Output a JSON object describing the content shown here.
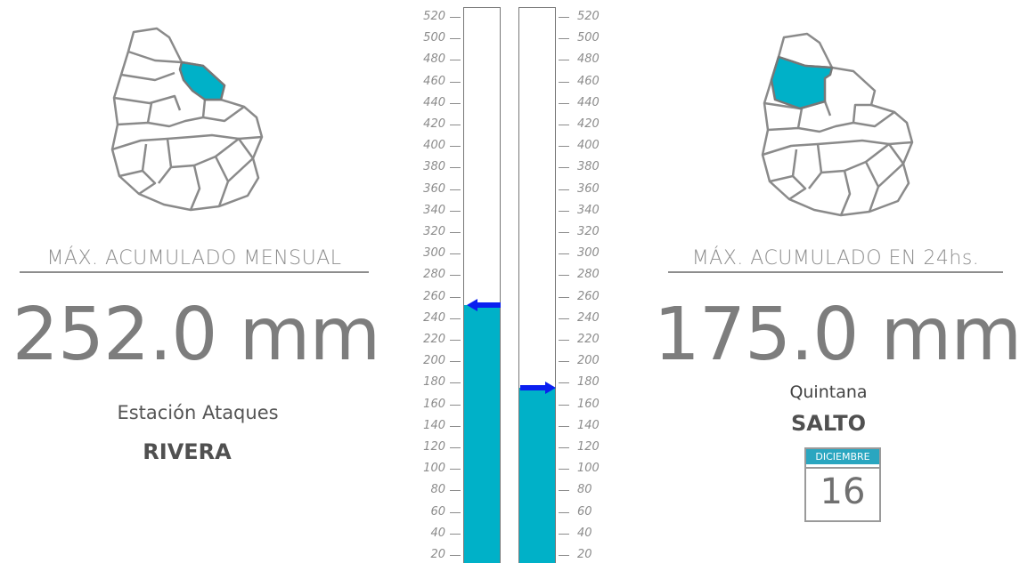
{
  "left_panel": {
    "heading": "MÁX. ACUMULADO MENSUAL",
    "value": "252.0 mm",
    "station": "Estación Ataques",
    "department": "RIVERA"
  },
  "right_panel": {
    "heading": "MÁX. ACUMULADO EN 24hs.",
    "value": "175.0 mm",
    "station": "Quintana",
    "department": "SALTO",
    "calendar": {
      "month": "DICIEMBRE",
      "day": "16"
    }
  },
  "gauge": {
    "left_ticks": [
      "520",
      "500",
      "480",
      "460",
      "440",
      "420",
      "400",
      "380",
      "360",
      "340",
      "320",
      "300",
      "280",
      "260",
      "240",
      "220",
      "200",
      "180",
      "160",
      "140",
      "120",
      "100",
      "80",
      "60",
      "40",
      "20"
    ],
    "right_ticks": [
      "520",
      "500",
      "480",
      "460",
      "440",
      "420",
      "400",
      "380",
      "360",
      "340",
      "320",
      "300",
      "280",
      "260",
      "240",
      "220",
      "200",
      "180",
      "160",
      "140",
      "120",
      "100",
      "80",
      "60",
      "40",
      "20"
    ],
    "monthly_level_mm": 252.0,
    "daily_level_mm": 175.0
  },
  "colors": {
    "highlight": "#00b1c8",
    "arrow": "#0a1ff0",
    "text": "#808080"
  }
}
